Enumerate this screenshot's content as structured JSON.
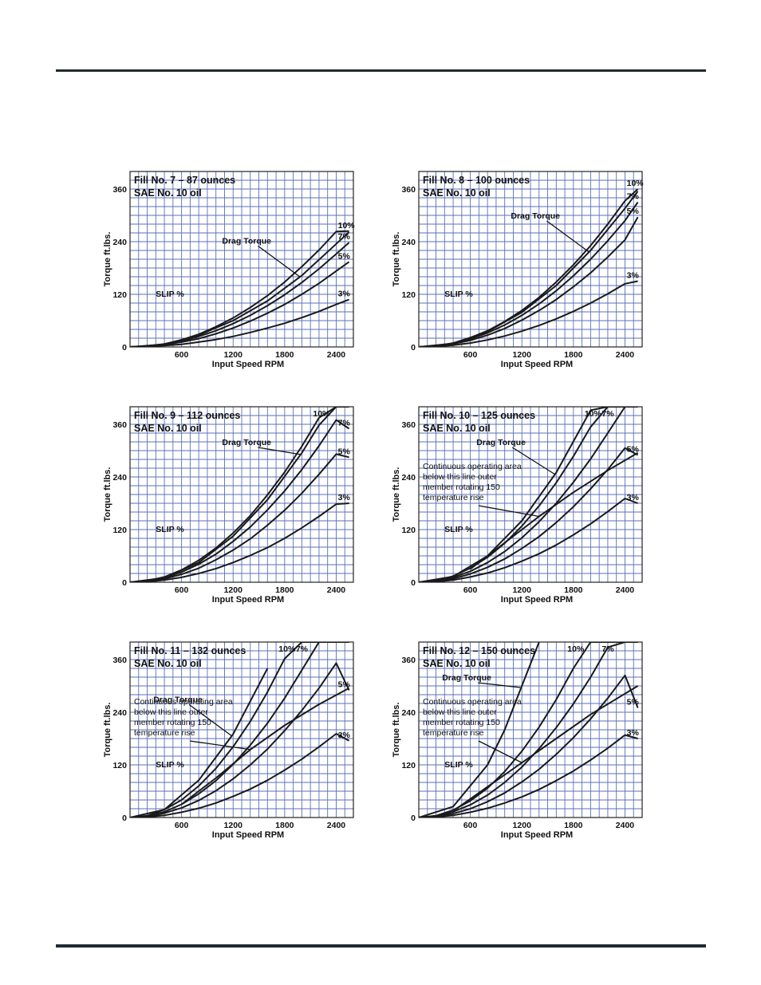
{
  "colors": {
    "grid": "#5b6fb8",
    "frame": "#222222",
    "curve": "#1a1a1a",
    "rule": "#1f2a33"
  },
  "chart_data": [
    {
      "type": "line",
      "title": "Fill No. 7 – 87 ounces",
      "subtitle": "SAE No. 10 oil",
      "xlabel": "Input Speed RPM",
      "ylabel": "Torque  ft.lbs.",
      "xlim": [
        0,
        2600
      ],
      "ylim": [
        0,
        400
      ],
      "xticks": [
        "600",
        "1200",
        "1800",
        "2400"
      ],
      "yticks": [
        "0",
        "120",
        "240",
        "360"
      ],
      "grid": true,
      "slip_label": "SLIP %",
      "drag_label": "Drag Torque",
      "note_lines": [],
      "x": [
        0,
        200,
        400,
        600,
        800,
        1000,
        1200,
        1400,
        1600,
        1800,
        2000,
        2200,
        2400,
        2550
      ],
      "series": [
        {
          "name": "10%",
          "values": [
            0,
            2,
            7,
            16,
            29,
            46,
            66,
            90,
            117,
            148,
            183,
            221,
            263,
            264
          ]
        },
        {
          "name": "7%",
          "values": [
            0,
            2,
            6,
            13,
            24,
            37,
            53,
            72,
            94,
            119,
            147,
            178,
            212,
            238
          ]
        },
        {
          "name": "5%",
          "values": [
            0,
            1,
            5,
            11,
            19,
            30,
            43,
            59,
            77,
            97,
            120,
            145,
            173,
            194
          ]
        },
        {
          "name": "3%",
          "values": [
            0,
            1,
            3,
            6,
            11,
            17,
            24,
            33,
            43,
            54,
            67,
            81,
            97,
            108
          ]
        }
      ],
      "drag_torque": {
        "x": [
          0,
          400,
          800,
          1200,
          1600,
          2000,
          2400,
          2550
        ],
        "values": [
          0,
          6,
          27,
          60,
          105,
          163,
          235,
          262
        ]
      },
      "continuous_line": null
    },
    {
      "type": "line",
      "title": "Fill No. 8 – 100 ounces",
      "subtitle": "SAE No. 10 oil",
      "xlabel": "Input Speed RPM",
      "ylabel": "Torque  ft.lbs.",
      "xlim": [
        0,
        2600
      ],
      "ylim": [
        0,
        400
      ],
      "xticks": [
        "600",
        "1200",
        "1800",
        "2400"
      ],
      "yticks": [
        "0",
        "120",
        "240",
        "360"
      ],
      "grid": true,
      "slip_label": "SLIP %",
      "drag_label": "Drag Torque",
      "note_lines": [],
      "x": [
        0,
        200,
        400,
        600,
        800,
        1000,
        1200,
        1400,
        1600,
        1800,
        2000,
        2200,
        2400,
        2550
      ],
      "series": [
        {
          "name": "10%",
          "values": [
            0,
            2,
            9,
            21,
            37,
            58,
            83,
            113,
            148,
            187,
            231,
            280,
            333,
            360
          ]
        },
        {
          "name": "7%",
          "values": [
            0,
            2,
            8,
            18,
            32,
            50,
            72,
            98,
            128,
            162,
            200,
            242,
            288,
            330
          ]
        },
        {
          "name": "5%",
          "values": [
            0,
            2,
            7,
            15,
            27,
            42,
            61,
            83,
            108,
            137,
            169,
            205,
            244,
            296
          ]
        },
        {
          "name": "3%",
          "values": [
            0,
            1,
            4,
            9,
            16,
            25,
            36,
            49,
            64,
            81,
            100,
            121,
            144,
            150
          ]
        }
      ],
      "drag_torque": {
        "x": [
          0,
          400,
          800,
          1200,
          1600,
          2000,
          2400,
          2550
        ],
        "values": [
          0,
          8,
          35,
          79,
          140,
          220,
          316,
          355
        ]
      },
      "continuous_line": null
    },
    {
      "type": "line",
      "title": "Fill No. 9 – 112 ounces",
      "subtitle": "SAE No. 10 oil",
      "xlabel": "Input Speed RPM",
      "ylabel": "Torque  ft.lbs.",
      "xlim": [
        0,
        2600
      ],
      "ylim": [
        0,
        400
      ],
      "xticks": [
        "600",
        "1200",
        "1800",
        "2400"
      ],
      "yticks": [
        "0",
        "120",
        "240",
        "360"
      ],
      "grid": true,
      "slip_label": "SLIP %",
      "drag_label": "Drag Torque",
      "note_lines": [],
      "x": [
        0,
        200,
        400,
        600,
        800,
        1000,
        1200,
        1400,
        1600,
        1800,
        2000,
        2200,
        2400,
        2550
      ],
      "series": [
        {
          "name": "10%",
          "values": [
            0,
            3,
            12,
            28,
            50,
            78,
            112,
            152,
            199,
            251,
            310,
            375,
            400,
            400
          ]
        },
        {
          "name": "7%",
          "values": [
            0,
            2,
            10,
            23,
            41,
            64,
            93,
            126,
            165,
            208,
            257,
            311,
            370,
            350
          ]
        },
        {
          "name": "5%",
          "values": [
            0,
            2,
            8,
            18,
            32,
            51,
            73,
            99,
            130,
            164,
            203,
            246,
            292,
            285
          ]
        },
        {
          "name": "3%",
          "values": [
            0,
            1,
            5,
            11,
            20,
            31,
            45,
            61,
            79,
            100,
            124,
            150,
            178,
            180
          ]
        }
      ],
      "drag_torque": {
        "x": [
          0,
          400,
          800,
          1200,
          1600,
          2000,
          2200,
          2400
        ],
        "values": [
          0,
          10,
          45,
          105,
          188,
          295,
          358,
          400
        ]
      },
      "continuous_line": null
    },
    {
      "type": "line",
      "title": "Fill No. 10 – 125 ounces",
      "subtitle": "SAE No. 10 oil",
      "xlabel": "Input Speed RPM",
      "ylabel": "Torque  ft.lbs.",
      "xlim": [
        0,
        2600
      ],
      "ylim": [
        0,
        400
      ],
      "xticks": [
        "600",
        "1200",
        "1800",
        "2400"
      ],
      "yticks": [
        "0",
        "120",
        "240",
        "360"
      ],
      "grid": true,
      "slip_label": "SLIP %",
      "drag_label": "Drag Torque",
      "note_lines": [
        "Continuous operating area",
        "below this line outer",
        "member rotating 150",
        "temperature rise"
      ],
      "x": [
        0,
        200,
        400,
        600,
        800,
        1000,
        1200,
        1400,
        1600,
        1800,
        2000,
        2200,
        2400,
        2550
      ],
      "series": [
        {
          "name": "10%",
          "values": [
            0,
            3,
            14,
            32,
            57,
            89,
            128,
            174,
            227,
            287,
            354,
            400,
            400,
            400
          ]
        },
        {
          "name": "7%",
          "values": [
            0,
            3,
            11,
            25,
            45,
            70,
            101,
            138,
            180,
            228,
            281,
            340,
            400,
            400
          ]
        },
        {
          "name": "5%",
          "values": [
            0,
            2,
            8,
            19,
            34,
            53,
            77,
            104,
            136,
            172,
            213,
            257,
            306,
            290
          ]
        },
        {
          "name": "3%",
          "values": [
            0,
            1,
            5,
            12,
            21,
            33,
            48,
            65,
            85,
            108,
            133,
            161,
            191,
            180
          ]
        }
      ],
      "drag_torque": {
        "x": [
          0,
          400,
          800,
          1200,
          1600,
          2000,
          2200
        ],
        "values": [
          0,
          13,
          60,
          140,
          250,
          392,
          400
        ]
      },
      "continuous_line": {
        "x": [
          600,
          1000,
          1400,
          1800,
          2200,
          2550
        ],
        "values": [
          30,
          90,
          150,
          205,
          255,
          295
        ]
      }
    },
    {
      "type": "line",
      "title": "Fill No. 11 – 132 ounces",
      "subtitle": "SAE No. 10 oil",
      "xlabel": "Input Speed RPM",
      "ylabel": "Torque  ft.lbs.",
      "xlim": [
        0,
        2600
      ],
      "ylim": [
        0,
        400
      ],
      "xticks": [
        "600",
        "1200",
        "1800",
        "2400"
      ],
      "yticks": [
        "0",
        "120",
        "240",
        "360"
      ],
      "grid": true,
      "slip_label": "SLIP %",
      "drag_label": "Drag Torque",
      "note_lines": [
        "Continuous operating area",
        "below this line outer",
        "member rotating 150",
        "temperature rise"
      ],
      "x": [
        0,
        200,
        400,
        600,
        800,
        1000,
        1200,
        1400,
        1600,
        1800,
        2000,
        2200,
        2400,
        2550
      ],
      "series": [
        {
          "name": "10%",
          "values": [
            0,
            4,
            18,
            40,
            72,
            112,
            161,
            219,
            286,
            362,
            400,
            400,
            400,
            400
          ]
        },
        {
          "name": "7%",
          "values": [
            0,
            3,
            13,
            30,
            54,
            84,
            121,
            165,
            215,
            272,
            336,
            400,
            400,
            400
          ]
        },
        {
          "name": "5%",
          "values": [
            0,
            2,
            10,
            22,
            39,
            61,
            88,
            120,
            156,
            198,
            244,
            295,
            352,
            290
          ]
        },
        {
          "name": "3%",
          "values": [
            0,
            1,
            5,
            12,
            21,
            33,
            48,
            65,
            85,
            108,
            133,
            161,
            191,
            175
          ]
        }
      ],
      "drag_torque": {
        "x": [
          0,
          400,
          800,
          1200,
          1600
        ],
        "values": [
          0,
          18,
          85,
          190,
          340
        ]
      },
      "continuous_line": {
        "x": [
          600,
          1000,
          1400,
          1800,
          2200,
          2550
        ],
        "values": [
          30,
          90,
          155,
          210,
          258,
          295
        ]
      }
    },
    {
      "type": "line",
      "title": "Fill No. 12 – 150 ounces",
      "subtitle": "SAE No. 10 oil",
      "xlabel": "Input Speed RPM",
      "ylabel": "Torque  ft.lbs.",
      "xlim": [
        0,
        2600
      ],
      "ylim": [
        0,
        400
      ],
      "xticks": [
        "600",
        "1200",
        "1800",
        "2400"
      ],
      "yticks": [
        "0",
        "120",
        "240",
        "360"
      ],
      "grid": true,
      "slip_label": "SLIP %",
      "drag_label": "Drag Torque",
      "note_lines": [
        "Continuous operating area",
        "below this line outer",
        "member rotating 150",
        "temperature rise"
      ],
      "x": [
        0,
        200,
        400,
        600,
        800,
        1000,
        1200,
        1400,
        1600,
        1800,
        2000,
        2200,
        2400,
        2550
      ],
      "series": [
        {
          "name": "10%",
          "values": [
            0,
            4,
            17,
            38,
            67,
            105,
            151,
            206,
            269,
            340,
            400,
            400,
            400,
            400
          ]
        },
        {
          "name": "7%",
          "values": [
            0,
            3,
            13,
            29,
            51,
            80,
            115,
            157,
            205,
            259,
            320,
            388,
            400,
            400
          ]
        },
        {
          "name": "5%",
          "values": [
            0,
            2,
            9,
            20,
            36,
            56,
            81,
            110,
            144,
            182,
            225,
            272,
            324,
            250
          ]
        },
        {
          "name": "3%",
          "values": [
            0,
            1,
            5,
            12,
            21,
            33,
            47,
            64,
            84,
            106,
            131,
            158,
            188,
            180
          ]
        }
      ],
      "drag_torque": {
        "x": [
          0,
          400,
          800,
          1000,
          1200,
          1400
        ],
        "values": [
          0,
          25,
          120,
          200,
          300,
          400
        ]
      },
      "continuous_line": {
        "x": [
          400,
          800,
          1200,
          1600,
          2000,
          2550
        ],
        "values": [
          15,
          70,
          125,
          180,
          235,
          300
        ]
      }
    }
  ]
}
